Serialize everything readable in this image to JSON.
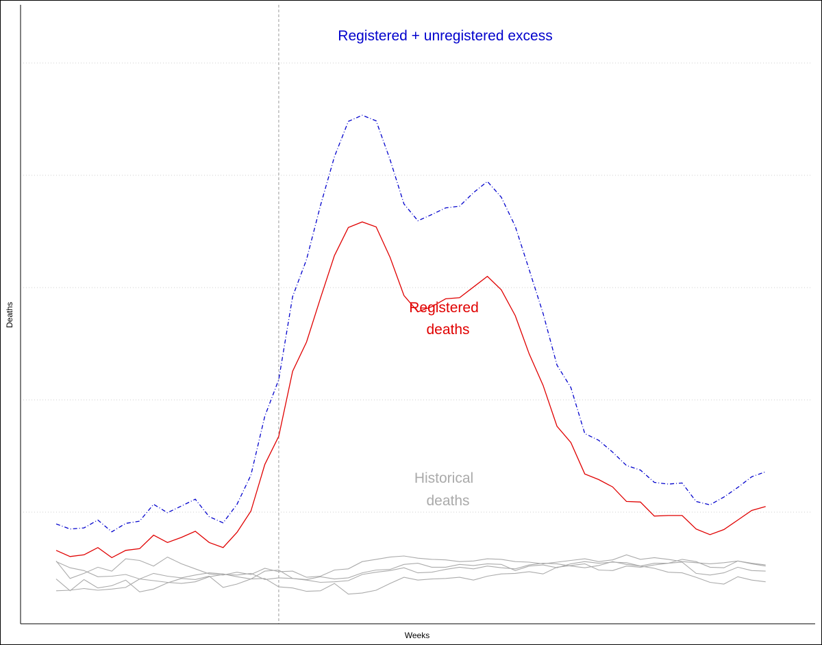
{
  "chart_data": {
    "type": "line",
    "xlabel": "Weeks",
    "ylabel": "Deaths",
    "x_range": [
      1,
      53
    ],
    "y_range": [
      0,
      100
    ],
    "grid": "horizontal-dotted",
    "x_ticks": [],
    "y_ticks": [],
    "reference_line_x": 17,
    "annotations": {
      "excess": "Registered + unregistered excess",
      "registered_line1": "Registered",
      "registered_line2": "deaths",
      "historical_line1": "Historical",
      "historical_line2": "deaths"
    },
    "colors": {
      "excess": "#0000cc",
      "registered": "#e00000",
      "historical": "#aaaaaa",
      "grid": "#cccccc",
      "reference": "#999999"
    },
    "series": [
      {
        "key": "excess",
        "style": "dotdash",
        "x": [
          1,
          2,
          3,
          4,
          5,
          6,
          7,
          8,
          9,
          10,
          11,
          12,
          13,
          14,
          15,
          16,
          17,
          18,
          19,
          20,
          21,
          22,
          23,
          24,
          25,
          26,
          27,
          28,
          29,
          30,
          31,
          32,
          33,
          34,
          35,
          36,
          37,
          38,
          39,
          40,
          41,
          42,
          43,
          44,
          45,
          46,
          47,
          48,
          49,
          50,
          51,
          52
        ],
        "values": [
          17.9,
          17.0,
          17.2,
          18.6,
          16.5,
          18.0,
          18.4,
          21.4,
          19.9,
          21.1,
          22.3,
          19.2,
          18.1,
          21.4,
          26.6,
          37.1,
          43.6,
          58.4,
          65.0,
          74.6,
          83.3,
          89.6,
          90.7,
          89.7,
          82.8,
          74.9,
          71.9,
          73.0,
          74.2,
          74.5,
          76.9,
          78.9,
          76.1,
          70.9,
          63.2,
          55.4,
          46.2,
          42.2,
          34.0,
          32.8,
          30.7,
          28.3,
          27.5,
          25.3,
          25.0,
          25.2,
          21.9,
          21.3,
          22.7,
          24.4,
          26.3,
          27.2
        ]
      },
      {
        "key": "registered",
        "style": "solid",
        "x": [
          1,
          2,
          3,
          4,
          5,
          6,
          7,
          8,
          9,
          10,
          11,
          12,
          13,
          14,
          15,
          16,
          17,
          18,
          19,
          20,
          21,
          22,
          23,
          24,
          25,
          26,
          27,
          28,
          29,
          30,
          31,
          32,
          33,
          34,
          35,
          36,
          37,
          38,
          39,
          40,
          41,
          42,
          43,
          44,
          45,
          46,
          47,
          48,
          49,
          50,
          51,
          52
        ],
        "values": [
          13.2,
          12.1,
          12.4,
          13.7,
          11.9,
          13.2,
          13.5,
          15.9,
          14.6,
          15.5,
          16.6,
          14.6,
          13.7,
          16.4,
          20.2,
          28.5,
          33.5,
          45.1,
          50.3,
          58.1,
          65.7,
          70.7,
          71.7,
          70.8,
          65.4,
          58.6,
          55.7,
          56.6,
          58.0,
          58.2,
          60.1,
          62.0,
          59.6,
          55.0,
          48.2,
          42.6,
          35.3,
          32.4,
          26.8,
          25.8,
          24.5,
          21.9,
          21.8,
          19.3,
          19.4,
          19.4,
          17.0,
          16.0,
          16.9,
          18.6,
          20.3,
          21.0
        ]
      },
      {
        "key": "historical_1",
        "style": "solid",
        "x": [
          1,
          2,
          3,
          4,
          5,
          6,
          7,
          8,
          9,
          10,
          11,
          12,
          13,
          14,
          15,
          16,
          17,
          18,
          19,
          20,
          21,
          22,
          23,
          24,
          25,
          26,
          27,
          28,
          29,
          30,
          31,
          32,
          33,
          34,
          35,
          36,
          37,
          38,
          39,
          40,
          41,
          42,
          43,
          44,
          45,
          46,
          47,
          48,
          49,
          50,
          51,
          52
        ],
        "values": [
          11.3,
          8.2,
          9.1,
          10.2,
          9.5,
          11.7,
          11.4,
          10.4,
          12.0,
          10.8,
          9.9,
          9.0,
          8.8,
          9.3,
          8.9,
          10.0,
          9.4,
          9.5,
          8.4,
          8.6,
          9.7,
          9.9,
          11.2,
          11.6,
          12.0,
          12.2,
          11.8,
          11.6,
          11.5,
          11.2,
          11.3,
          11.7,
          11.6,
          11.2,
          11.1,
          10.8,
          11.1,
          11.4,
          11.7,
          11.2,
          11.5,
          12.4,
          11.6,
          11.9,
          11.6,
          11.2,
          11.0,
          10.8,
          11.0,
          11.3,
          10.8,
          10.4
        ]
      },
      {
        "key": "historical_2",
        "style": "solid",
        "x": [
          1,
          2,
          3,
          4,
          5,
          6,
          7,
          8,
          9,
          10,
          11,
          12,
          13,
          14,
          15,
          16,
          17,
          18,
          19,
          20,
          21,
          22,
          23,
          24,
          25,
          26,
          27,
          28,
          29,
          30,
          31,
          32,
          33,
          34,
          35,
          36,
          37,
          38,
          39,
          40,
          41,
          42,
          43,
          44,
          45,
          46,
          47,
          48,
          49,
          50,
          51,
          52
        ],
        "values": [
          11.2,
          10.1,
          9.6,
          8.5,
          8.6,
          8.9,
          8.1,
          9.1,
          8.6,
          8.3,
          8.8,
          9.2,
          9.0,
          8.5,
          8.1,
          9.5,
          9.7,
          8.2,
          8.0,
          8.5,
          8.1,
          8.3,
          9.2,
          9.7,
          9.8,
          10.7,
          10.9,
          10.2,
          10.2,
          10.7,
          10.5,
          10.8,
          10.7,
          9.6,
          10.4,
          10.6,
          10.1,
          10.8,
          11.2,
          10.9,
          11.1,
          11.0,
          10.4,
          10.9,
          10.9,
          11.1,
          9.1,
          8.8,
          9.2,
          10.2,
          9.6,
          9.5
        ]
      },
      {
        "key": "historical_3",
        "style": "solid",
        "x": [
          1,
          2,
          3,
          4,
          5,
          6,
          7,
          8,
          9,
          10,
          11,
          12,
          13,
          14,
          15,
          16,
          17,
          18,
          19,
          20,
          21,
          22,
          23,
          24,
          25,
          26,
          27,
          28,
          29,
          30,
          31,
          32,
          33,
          34,
          35,
          36,
          37,
          38,
          39,
          40,
          41,
          42,
          43,
          44,
          45,
          46,
          47,
          48,
          49,
          50,
          51,
          52
        ],
        "values": [
          6.0,
          6.1,
          6.4,
          6.1,
          6.3,
          6.6,
          8.1,
          7.8,
          7.5,
          7.3,
          7.6,
          8.5,
          8.9,
          8.8,
          9.1,
          8.0,
          8.3,
          8.2,
          7.9,
          7.5,
          7.6,
          7.8,
          8.9,
          9.3,
          9.6,
          10.1,
          9.2,
          9.3,
          9.8,
          10.2,
          9.9,
          10.4,
          10.1,
          9.9,
          10.6,
          10.9,
          10.8,
          10.4,
          10.1,
          10.5,
          11.2,
          10.7,
          10.4,
          10.0,
          9.3,
          9.2,
          8.4,
          7.5,
          7.2,
          8.5,
          7.9,
          7.6
        ]
      },
      {
        "key": "historical_4",
        "style": "solid",
        "x": [
          1,
          2,
          3,
          4,
          5,
          6,
          7,
          8,
          9,
          10,
          11,
          12,
          13,
          14,
          15,
          16,
          17,
          18,
          19,
          20,
          21,
          22,
          23,
          24,
          25,
          26,
          27,
          28,
          29,
          30,
          31,
          32,
          33,
          34,
          35,
          36,
          37,
          38,
          39,
          40,
          41,
          42,
          43,
          44,
          45,
          46,
          47,
          48,
          49,
          50,
          51,
          52
        ],
        "values": [
          8.1,
          6.0,
          8.0,
          6.5,
          6.9,
          7.9,
          5.8,
          6.3,
          7.4,
          8.2,
          8.0,
          8.6,
          6.6,
          7.2,
          8.1,
          8.2,
          6.7,
          6.5,
          5.9,
          6.0,
          7.3,
          5.4,
          5.6,
          6.1,
          7.3,
          8.4,
          7.9,
          8.1,
          8.2,
          8.4,
          7.9,
          8.6,
          9.0,
          9.1,
          9.4,
          9.0,
          10.2,
          10.5,
          10.8,
          9.7,
          9.6,
          10.4,
          10.2,
          10.6,
          10.9,
          11.6,
          11.2,
          10.2,
          10.1,
          11.3,
          10.9,
          10.6
        ]
      }
    ]
  }
}
